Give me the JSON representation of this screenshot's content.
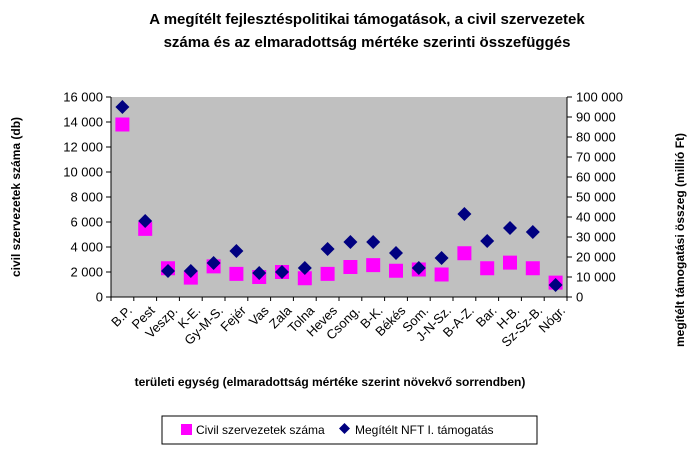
{
  "chart_data": {
    "type": "scatter",
    "title_lines": [
      "A megítélt fejlesztéspolitikai támogatások, a civil szervezetek",
      "száma és az elmaradottság mértéke szerinti összefüggés"
    ],
    "categories": [
      "B.P.",
      "Pest",
      "Veszp.",
      "K-E.",
      "Gy-M-S.",
      "Fejér",
      "Vas",
      "Zala",
      "Tolna",
      "Heves",
      "Csong.",
      "B-K.",
      "Békés",
      "Som.",
      "J-N-Sz.",
      "B-A-Z.",
      "Bar.",
      "H-B.",
      "Sz-Sz-B.",
      "Nógr."
    ],
    "xlabel": "területi egység (elmaradottság mértéke szerint növekvő sorrendben)",
    "ylabel_left": "civil szervezetek száma (db)",
    "ylabel_right": "megítélt támogatási összeg (millió Ft)",
    "ylim_left": [
      0,
      16000
    ],
    "ylim_right": [
      0,
      100000
    ],
    "yticks_left": [
      "0",
      "2 000",
      "4 000",
      "6 000",
      "8 000",
      "10 000",
      "12 000",
      "14 000",
      "16 000"
    ],
    "yticks_right": [
      "0",
      "10 000",
      "20 000",
      "30 000",
      "40 000",
      "50 000",
      "60 000",
      "70 000",
      "80 000",
      "90 000",
      "100 000"
    ],
    "plot_background": "#c0c0c0",
    "grid": false,
    "legend_position": "bottom",
    "series": [
      {
        "name": "Civil szervezetek száma",
        "axis": "left",
        "marker": "square",
        "color": "#ff00ff",
        "values": [
          13800,
          5450,
          2300,
          1550,
          2450,
          1850,
          1600,
          2000,
          1500,
          1850,
          2400,
          2550,
          2100,
          2200,
          1800,
          3500,
          2300,
          2750,
          2300,
          1150
        ]
      },
      {
        "name": "Megítélt NFT I. támogatás",
        "axis": "right",
        "marker": "diamond",
        "color": "#000080",
        "values": [
          95000,
          38000,
          13000,
          13000,
          17000,
          23000,
          12000,
          12500,
          14500,
          24000,
          27500,
          27500,
          22000,
          14500,
          19500,
          41500,
          28000,
          34500,
          32500,
          6000
        ]
      }
    ]
  }
}
